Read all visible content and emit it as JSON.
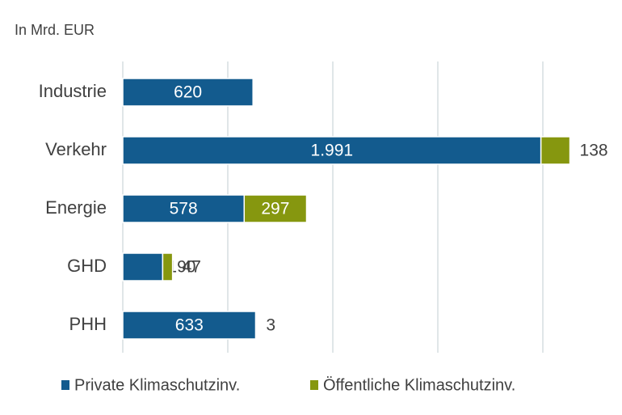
{
  "chart_data": {
    "type": "bar",
    "orientation": "horizontal",
    "stacked": true,
    "unit_label": "In Mrd. EUR",
    "categories": [
      "Industrie",
      "Verkehr",
      "Energie",
      "GHD",
      "PHH"
    ],
    "series": [
      {
        "name": "Private Klimaschutzinv.",
        "color": "#135b8e",
        "values": [
          620,
          1991,
          578,
          190,
          633
        ],
        "value_labels": [
          "620",
          "1.991",
          "578",
          "190",
          "633"
        ]
      },
      {
        "name": "Öffentliche Klimaschutzinv.",
        "color": "#86970f",
        "values": [
          null,
          138,
          297,
          47,
          3
        ]
      }
    ],
    "xlim": [
      0,
      2300
    ],
    "xticks": [
      0,
      500,
      1000,
      1500,
      2000
    ],
    "grid": true,
    "legend": "bottom"
  }
}
